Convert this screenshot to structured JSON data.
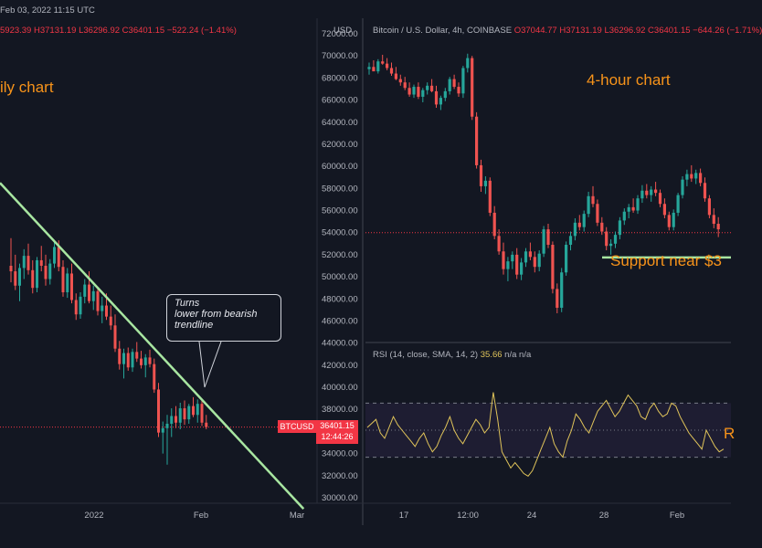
{
  "left_panel": {
    "date_header": "Feb 03, 2022 11:15 UTC",
    "ohlc": {
      "open": "5923.39",
      "high": "H37131.19",
      "low": "L36296.92",
      "close": "C36401.15",
      "change": "−522.24 (−1.41%)"
    },
    "title_annotation": "ily chart",
    "callout": {
      "line1": "Turns",
      "line2": "lower from bearish",
      "line3": "trendline"
    },
    "symbol_tag": "BTCUSD",
    "price_tag": "36401.15",
    "countdown": "12:44:26",
    "x_ticks": [
      "2022",
      "Feb",
      "Mar"
    ]
  },
  "price_axis": {
    "unit": "USD",
    "ticks": [
      "72000.00",
      "70000.00",
      "68000.00",
      "66000.00",
      "64000.00",
      "62000.00",
      "60000.00",
      "58000.00",
      "56000.00",
      "54000.00",
      "52000.00",
      "50000.00",
      "48000.00",
      "46000.00",
      "44000.00",
      "42000.00",
      "40000.00",
      "38000.00",
      "36000.00",
      "34000.00",
      "32000.00",
      "30000.00"
    ]
  },
  "right_panel": {
    "title": "Bitcoin / U.S. Dollar, 4h, COINBASE",
    "ohlc": {
      "open": "O37044.77",
      "high": "H37131.19",
      "low": "L36296.92",
      "close": "C36401.15",
      "change": "−644.26 (−1.71%)"
    },
    "title_annotation": "4-hour chart",
    "support_annotation": "Support near $3",
    "rsi": {
      "label": "RSI (14, close, SMA, 14, 2)",
      "value": "35.66",
      "na1": "n/a",
      "na2": "n/a",
      "side_label": "R"
    },
    "x_ticks": [
      "17",
      "12:00",
      "24",
      "28",
      "Feb"
    ]
  },
  "colors": {
    "background": "#131722",
    "up": "#26a69a",
    "down": "#ef5350",
    "trendline": "#a8e6a1",
    "annotation": "#f7931a",
    "rsi_line": "#e0c45a"
  },
  "chart_data": [
    {
      "type": "candlestick",
      "title": "",
      "timeframe": "daily",
      "symbol": "BTCUSD",
      "ylim": [
        30000,
        72000
      ],
      "x_ticks": [
        "2022",
        "Feb",
        "Mar"
      ],
      "candles": [
        [
          51000,
          53500,
          49500,
          50500
        ],
        [
          50500,
          52000,
          48800,
          49200
        ],
        [
          49200,
          51200,
          47800,
          50800
        ],
        [
          50800,
          52500,
          49800,
          51900
        ],
        [
          51900,
          53000,
          50200,
          50600
        ],
        [
          50600,
          51500,
          48500,
          49000
        ],
        [
          49000,
          51800,
          48600,
          51500
        ],
        [
          51500,
          52800,
          50500,
          51000
        ],
        [
          51000,
          52000,
          49200,
          49800
        ],
        [
          49800,
          51600,
          49300,
          51200
        ],
        [
          51200,
          53200,
          50800,
          52700
        ],
        [
          52700,
          53300,
          50500,
          50900
        ],
        [
          50900,
          51500,
          48200,
          48600
        ],
        [
          48600,
          50800,
          48100,
          50300
        ],
        [
          50300,
          51200,
          47600,
          47900
        ],
        [
          47900,
          48500,
          46100,
          46600
        ],
        [
          46600,
          48600,
          46200,
          48200
        ],
        [
          48200,
          49800,
          47600,
          49300
        ],
        [
          49300,
          50500,
          47600,
          47800
        ],
        [
          47800,
          49200,
          47000,
          48700
        ],
        [
          48700,
          49100,
          46500,
          46900
        ],
        [
          46900,
          48200,
          45800,
          47400
        ],
        [
          47400,
          48500,
          46100,
          46400
        ],
        [
          46400,
          47400,
          45200,
          45600
        ],
        [
          45600,
          46600,
          43200,
          43500
        ],
        [
          43500,
          44200,
          41600,
          42100
        ],
        [
          42100,
          43500,
          40800,
          43100
        ],
        [
          43100,
          43600,
          41500,
          41800
        ],
        [
          41800,
          43500,
          41400,
          43200
        ],
        [
          43200,
          44100,
          42300,
          42600
        ],
        [
          42600,
          43300,
          41700,
          42000
        ],
        [
          42000,
          43000,
          40900,
          42700
        ],
        [
          42700,
          43400,
          41800,
          42100
        ],
        [
          42100,
          42600,
          39500,
          39800
        ],
        [
          39800,
          40400,
          35500,
          35900
        ],
        [
          35900,
          36900,
          34000,
          36300
        ],
        [
          36300,
          37500,
          33000,
          36700
        ],
        [
          36700,
          38100,
          35500,
          37400
        ],
        [
          37400,
          38300,
          36300,
          36800
        ],
        [
          36800,
          38600,
          36200,
          38100
        ],
        [
          38100,
          38800,
          36600,
          37100
        ],
        [
          37100,
          38500,
          36700,
          38300
        ],
        [
          38300,
          39100,
          37300,
          37500
        ],
        [
          37500,
          38900,
          36800,
          38500
        ],
        [
          38500,
          38900,
          36500,
          36800
        ],
        [
          36800,
          37500,
          36200,
          36400
        ]
      ],
      "trendline": {
        "from": {
          "index": 0,
          "price": 58500
        },
        "to": {
          "index": 75,
          "price": 29000
        }
      }
    },
    {
      "type": "candlestick",
      "title": "Bitcoin / U.S. Dollar, 4h, COINBASE",
      "timeframe": "4h",
      "ylim": [
        45000,
        71000
      ],
      "x_ticks": [
        "17",
        "12:00",
        "24",
        "28",
        "Feb"
      ],
      "candles": [
        [
          68800,
          69400,
          68300,
          69000
        ],
        [
          69000,
          69600,
          68700,
          68600
        ],
        [
          68600,
          69700,
          68400,
          69500
        ],
        [
          69500,
          70100,
          69200,
          69300
        ],
        [
          69300,
          69800,
          68700,
          68900
        ],
        [
          68900,
          69400,
          68200,
          68400
        ],
        [
          68400,
          69000,
          67800,
          67900
        ],
        [
          67900,
          68300,
          67300,
          67600
        ],
        [
          67600,
          68100,
          66900,
          67100
        ],
        [
          67100,
          67600,
          66300,
          66500
        ],
        [
          66500,
          67400,
          66200,
          67200
        ],
        [
          67200,
          67600,
          66100,
          66300
        ],
        [
          66300,
          67100,
          65800,
          66900
        ],
        [
          66900,
          67600,
          66500,
          67300
        ],
        [
          67300,
          67900,
          66700,
          66800
        ],
        [
          66800,
          67300,
          65300,
          65600
        ],
        [
          65600,
          66400,
          65100,
          66200
        ],
        [
          66200,
          67100,
          65900,
          66800
        ],
        [
          66800,
          68100,
          66500,
          67900
        ],
        [
          67900,
          68300,
          67000,
          67200
        ],
        [
          67200,
          67600,
          66300,
          66600
        ],
        [
          66600,
          69100,
          66200,
          68900
        ],
        [
          68900,
          70200,
          68500,
          69800
        ],
        [
          69800,
          70000,
          64200,
          64500
        ],
        [
          64500,
          64900,
          59800,
          60100
        ],
        [
          60100,
          60600,
          57700,
          58200
        ],
        [
          58200,
          59100,
          57500,
          58700
        ],
        [
          58700,
          59000,
          55500,
          55800
        ],
        [
          55800,
          56400,
          53400,
          53700
        ],
        [
          53700,
          54300,
          52000,
          52300
        ],
        [
          52300,
          53100,
          50200,
          50700
        ],
        [
          50700,
          51800,
          49600,
          51400
        ],
        [
          51400,
          52300,
          50700,
          52000
        ],
        [
          52000,
          52600,
          49800,
          50200
        ],
        [
          50200,
          51700,
          49700,
          51300
        ],
        [
          51300,
          52600,
          50900,
          52300
        ],
        [
          52300,
          53100,
          51500,
          51800
        ],
        [
          51800,
          52300,
          50400,
          50900
        ],
        [
          50900,
          52400,
          50500,
          52100
        ],
        [
          52100,
          54600,
          51800,
          54300
        ],
        [
          54300,
          54800,
          52600,
          52900
        ],
        [
          52900,
          53200,
          48500,
          48900
        ],
        [
          48900,
          49400,
          46700,
          47200
        ],
        [
          47200,
          50800,
          46800,
          50400
        ],
        [
          50400,
          53200,
          50100,
          52900
        ],
        [
          52900,
          54100,
          52400,
          53700
        ],
        [
          53700,
          55300,
          53300,
          54900
        ],
        [
          54900,
          55600,
          54200,
          54500
        ],
        [
          54500,
          56000,
          54100,
          55700
        ],
        [
          55700,
          57700,
          55400,
          57300
        ],
        [
          57300,
          58200,
          56300,
          56600
        ],
        [
          56600,
          57000,
          54600,
          54900
        ],
        [
          54900,
          55400,
          53800,
          54100
        ],
        [
          54100,
          54500,
          52400,
          52800
        ],
        [
          52800,
          53400,
          52000,
          53000
        ],
        [
          53000,
          54100,
          52600,
          53800
        ],
        [
          53800,
          55400,
          53400,
          55100
        ],
        [
          55100,
          56200,
          54700,
          55900
        ],
        [
          55900,
          56600,
          55300,
          56300
        ],
        [
          56300,
          57100,
          55800,
          56000
        ],
        [
          56000,
          57400,
          55700,
          57100
        ],
        [
          57100,
          58300,
          56700,
          57800
        ],
        [
          57800,
          58400,
          57100,
          57400
        ],
        [
          57400,
          58200,
          56800,
          57900
        ],
        [
          57900,
          58600,
          57300,
          57600
        ],
        [
          57600,
          57900,
          56300,
          56600
        ],
        [
          56600,
          57100,
          55300,
          55600
        ],
        [
          55600,
          55900,
          54200,
          54500
        ],
        [
          54500,
          56100,
          54200,
          55800
        ],
        [
          55800,
          57600,
          55500,
          57400
        ],
        [
          57400,
          59100,
          57100,
          58800
        ],
        [
          58800,
          59700,
          58200,
          59300
        ],
        [
          59300,
          60100,
          58600,
          58900
        ],
        [
          58900,
          59700,
          58400,
          59400
        ],
        [
          59400,
          59800,
          58200,
          58500
        ],
        [
          58500,
          59000,
          56800,
          57100
        ],
        [
          57100,
          57400,
          55300,
          55600
        ],
        [
          55600,
          56200,
          54400,
          54800
        ],
        [
          54800,
          55400,
          53600,
          54300
        ]
      ],
      "support_line": 52000,
      "current_price_line": 54000
    },
    {
      "type": "line",
      "title": "RSI (14, close, SMA, 14, 2)",
      "current_value": 35.66,
      "ylim": [
        0,
        100
      ],
      "bands": [
        30,
        70
      ],
      "values": [
        52,
        55,
        58,
        48,
        44,
        52,
        60,
        54,
        50,
        46,
        42,
        38,
        44,
        48,
        40,
        34,
        38,
        46,
        52,
        60,
        50,
        44,
        40,
        46,
        52,
        58,
        54,
        48,
        52,
        78,
        58,
        34,
        28,
        22,
        26,
        22,
        18,
        16,
        20,
        28,
        36,
        44,
        52,
        40,
        34,
        30,
        42,
        50,
        62,
        58,
        52,
        48,
        56,
        64,
        68,
        72,
        66,
        60,
        64,
        70,
        76,
        72,
        68,
        60,
        58,
        66,
        70,
        64,
        60,
        62,
        70,
        68,
        60,
        54,
        48,
        44,
        40,
        36,
        50,
        44,
        38,
        34,
        36
      ]
    }
  ]
}
